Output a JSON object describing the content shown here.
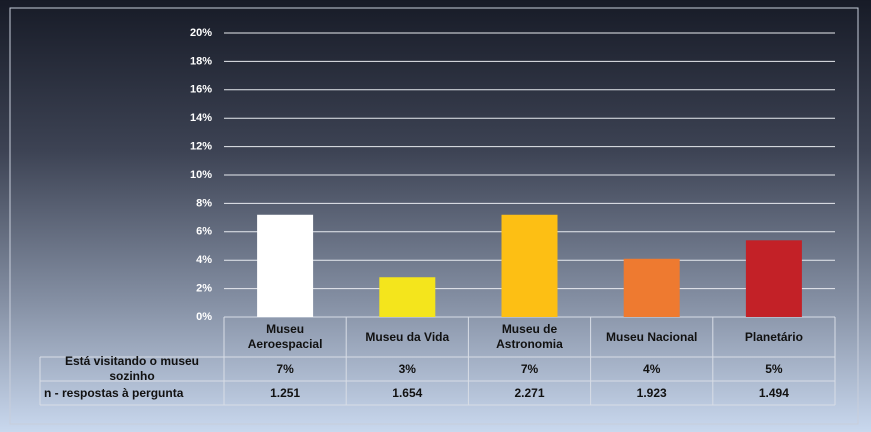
{
  "chart_data": {
    "type": "bar",
    "categories": [
      "Museu Aeroespacial",
      "Museu da Vida",
      "Museu de Astronomia",
      "Museu Nacional",
      "Planetário"
    ],
    "series": [
      {
        "name": "Está visitando o museu sozinho",
        "values": [
          7.2,
          2.8,
          7.2,
          4.1,
          5.4
        ],
        "value_labels": [
          "7%",
          "3%",
          "7%",
          "4%",
          "5%"
        ],
        "colors": [
          "#ffffff",
          "#f4e51c",
          "#fdbf14",
          "#ee7a30",
          "#c32127"
        ]
      }
    ],
    "n_row": {
      "name": "n - respostas à pergunta",
      "values": [
        1251,
        1654,
        2271,
        1923,
        1494
      ],
      "value_labels": [
        "1.251",
        "1.654",
        "2.271",
        "1.923",
        "1.494"
      ]
    },
    "ylim": [
      0,
      20
    ],
    "yticks": [
      {
        "value": 0,
        "label": "0%"
      },
      {
        "value": 2,
        "label": "2%"
      },
      {
        "value": 4,
        "label": "4%"
      },
      {
        "value": 6,
        "label": "6%"
      },
      {
        "value": 8,
        "label": "8%"
      },
      {
        "value": 10,
        "label": "10%"
      },
      {
        "value": 12,
        "label": "12%"
      },
      {
        "value": 14,
        "label": "14%"
      },
      {
        "value": 16,
        "label": "16%"
      },
      {
        "value": 18,
        "label": "18%"
      },
      {
        "value": 20,
        "label": "20%"
      }
    ],
    "grid": true
  }
}
